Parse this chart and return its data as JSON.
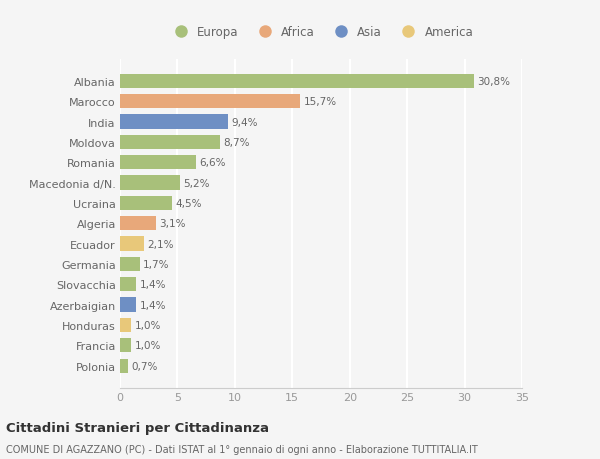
{
  "categories": [
    "Albania",
    "Marocco",
    "India",
    "Moldova",
    "Romania",
    "Macedonia d/N.",
    "Ucraina",
    "Algeria",
    "Ecuador",
    "Germania",
    "Slovacchia",
    "Azerbaigian",
    "Honduras",
    "Francia",
    "Polonia"
  ],
  "values": [
    30.8,
    15.7,
    9.4,
    8.7,
    6.6,
    5.2,
    4.5,
    3.1,
    2.1,
    1.7,
    1.4,
    1.4,
    1.0,
    1.0,
    0.7
  ],
  "labels": [
    "30,8%",
    "15,7%",
    "9,4%",
    "8,7%",
    "6,6%",
    "5,2%",
    "4,5%",
    "3,1%",
    "2,1%",
    "1,7%",
    "1,4%",
    "1,4%",
    "1,0%",
    "1,0%",
    "0,7%"
  ],
  "colors": [
    "#a8c07a",
    "#e8a87a",
    "#6e8fc4",
    "#a8c07a",
    "#a8c07a",
    "#a8c07a",
    "#a8c07a",
    "#e8a87a",
    "#e8c87a",
    "#a8c07a",
    "#a8c07a",
    "#6e8fc4",
    "#e8c87a",
    "#a8c07a",
    "#a8c07a"
  ],
  "legend": [
    {
      "label": "Europa",
      "color": "#a8c07a"
    },
    {
      "label": "Africa",
      "color": "#e8a87a"
    },
    {
      "label": "Asia",
      "color": "#6e8fc4"
    },
    {
      "label": "America",
      "color": "#e8c87a"
    }
  ],
  "xlim": [
    0,
    35
  ],
  "xticks": [
    0,
    5,
    10,
    15,
    20,
    25,
    30,
    35
  ],
  "title": "Cittadini Stranieri per Cittadinanza",
  "subtitle": "COMUNE DI AGAZZANO (PC) - Dati ISTAT al 1° gennaio di ogni anno - Elaborazione TUTTITALIA.IT",
  "bg_color": "#f5f5f5",
  "grid_color": "#ffffff",
  "bar_height": 0.7
}
